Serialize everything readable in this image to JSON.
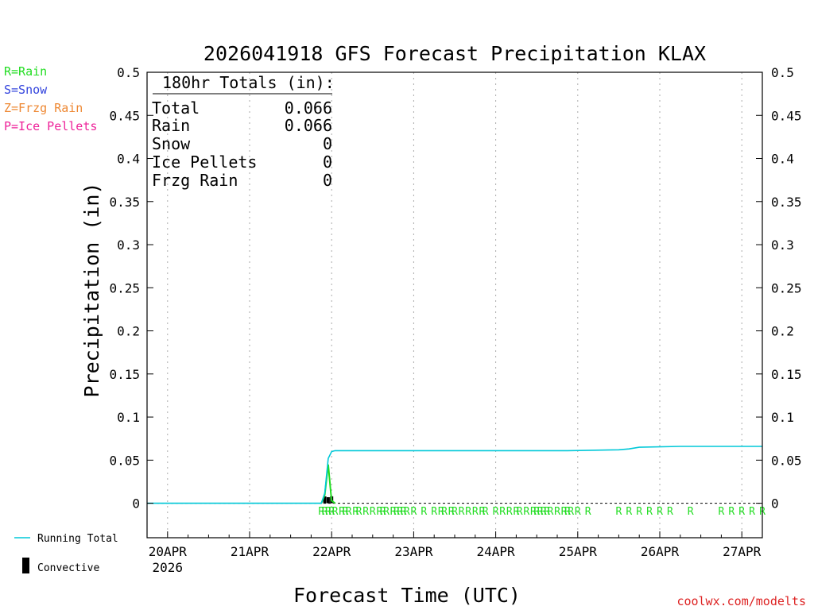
{
  "chart_data": {
    "type": "line",
    "title": "2026041918 GFS Forecast Precipitation KLAX",
    "xlabel": "Forecast Time (UTC)",
    "ylabel": "Precipitation (in)",
    "ylim": [
      -0.04,
      0.5
    ],
    "xlim_days": [
      "2026-04-19T18:00",
      "2026-04-27T06:00"
    ],
    "yticks": [
      "0",
      "0.05",
      "0.1",
      "0.15",
      "0.2",
      "0.25",
      "0.3",
      "0.35",
      "0.4",
      "0.45",
      "0.5"
    ],
    "xticks": [
      "20APR",
      "21APR",
      "22APR",
      "23APR",
      "24APR",
      "25APR",
      "26APR",
      "27APR"
    ],
    "xtick_year": "2026",
    "grid": "vertical dotted at each day",
    "legend_left": [
      {
        "label": "R=Rain",
        "color": "#22dd22"
      },
      {
        "label": "S=Snow",
        "color": "#3344dd"
      },
      {
        "label": "Z=Frzg Rain",
        "color": "#ee8833"
      },
      {
        "label": "P=Ice Pellets",
        "color": "#ee2299"
      }
    ],
    "legend_bottom": [
      {
        "label": "Running Total",
        "color": "#00c8d8"
      },
      {
        "label": "Convective",
        "color": "#000000"
      }
    ],
    "totals_box": {
      "header": "180hr Totals (in):",
      "rows": [
        {
          "label": "Total",
          "value": "0.066"
        },
        {
          "label": "Rain",
          "value": "0.066"
        },
        {
          "label": "Snow",
          "value": "0"
        },
        {
          "label": "Ice Pellets",
          "value": "0"
        },
        {
          "label": "Frzg Rain",
          "value": "0"
        }
      ]
    },
    "series": [
      {
        "name": "Running Total",
        "color": "#00c8d8",
        "points": [
          [
            "2026-04-19T18:00",
            0.0
          ],
          [
            "2026-04-21T21:00",
            0.0
          ],
          [
            "2026-04-21T22:00",
            0.012
          ],
          [
            "2026-04-21T23:00",
            0.052
          ],
          [
            "2026-04-22T00:00",
            0.06
          ],
          [
            "2026-04-22T01:00",
            0.061
          ],
          [
            "2026-04-24T21:00",
            0.061
          ],
          [
            "2026-04-25T12:00",
            0.062
          ],
          [
            "2026-04-25T15:00",
            0.063
          ],
          [
            "2026-04-25T18:00",
            0.065
          ],
          [
            "2026-04-26T06:00",
            0.066
          ],
          [
            "2026-04-27T06:00",
            0.066
          ]
        ]
      },
      {
        "name": "Rain",
        "color": "#22dd22",
        "points": [
          [
            "2026-04-21T21:00",
            0.0
          ],
          [
            "2026-04-21T22:00",
            0.01
          ],
          [
            "2026-04-21T23:00",
            0.045
          ],
          [
            "2026-04-21T23:59",
            0.003
          ],
          [
            "2026-04-22T01:00",
            0.0
          ]
        ]
      }
    ],
    "convective_bars": [
      {
        "time": "2026-04-21T22:00",
        "value": 0.008
      },
      {
        "time": "2026-04-21T23:00",
        "value": 0.007
      },
      {
        "time": "2026-04-22T00:00",
        "value": 0.008
      }
    ],
    "ptype_markers": {
      "symbol": "R",
      "color": "#22dd22",
      "times": [
        "2026-04-21T21:00",
        "2026-04-21T22:00",
        "2026-04-21T23:00",
        "2026-04-22T00:00",
        "2026-04-22T01:00",
        "2026-04-22T03:00",
        "2026-04-22T04:00",
        "2026-04-22T05:00",
        "2026-04-22T07:00",
        "2026-04-22T08:00",
        "2026-04-22T10:00",
        "2026-04-22T12:00",
        "2026-04-22T14:00",
        "2026-04-22T15:00",
        "2026-04-22T16:00",
        "2026-04-22T18:00",
        "2026-04-22T19:00",
        "2026-04-22T20:00",
        "2026-04-22T21:00",
        "2026-04-22T22:00",
        "2026-04-23T00:00",
        "2026-04-23T03:00",
        "2026-04-23T06:00",
        "2026-04-23T08:00",
        "2026-04-23T09:00",
        "2026-04-23T11:00",
        "2026-04-23T12:00",
        "2026-04-23T14:00",
        "2026-04-23T16:00",
        "2026-04-23T18:00",
        "2026-04-23T20:00",
        "2026-04-23T21:00",
        "2026-04-24T00:00",
        "2026-04-24T02:00",
        "2026-04-24T04:00",
        "2026-04-24T06:00",
        "2026-04-24T07:00",
        "2026-04-24T09:00",
        "2026-04-24T11:00",
        "2026-04-24T12:00",
        "2026-04-24T13:00",
        "2026-04-24T14:00",
        "2026-04-24T15:00",
        "2026-04-24T16:00",
        "2026-04-24T18:00",
        "2026-04-24T20:00",
        "2026-04-24T21:00",
        "2026-04-24T22:00",
        "2026-04-25T00:00",
        "2026-04-25T03:00",
        "2026-04-25T12:00",
        "2026-04-25T15:00",
        "2026-04-25T18:00",
        "2026-04-25T21:00",
        "2026-04-26T00:00",
        "2026-04-26T03:00",
        "2026-04-26T09:00",
        "2026-04-26T18:00",
        "2026-04-26T21:00",
        "2026-04-27T00:00",
        "2026-04-27T03:00",
        "2026-04-27T06:00"
      ]
    },
    "credit": "coolwx.com/modelts"
  }
}
